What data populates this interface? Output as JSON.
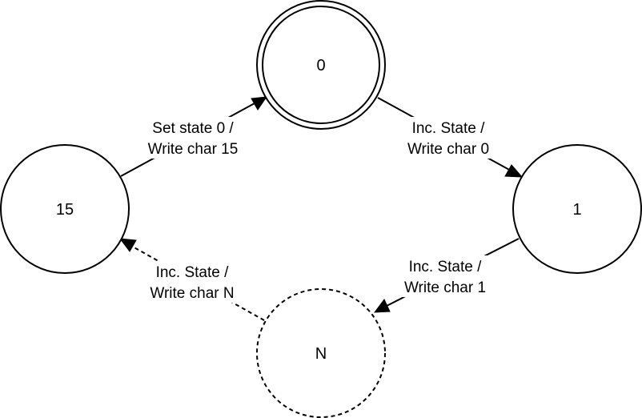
{
  "diagram": {
    "states": {
      "s0": {
        "label": "0",
        "accepting": true
      },
      "s1": {
        "label": "1"
      },
      "sN": {
        "label": "N",
        "dashed": true
      },
      "s15": {
        "label": "15"
      }
    },
    "transitions": {
      "t0_1": {
        "line1": "Inc. State /",
        "line2": "Write char 0"
      },
      "t1_N": {
        "line1": "Inc. State /",
        "line2": "Write char 1"
      },
      "tN_15": {
        "line1": "Inc. State /",
        "line2": "Write char N",
        "dashed": true
      },
      "t15_0": {
        "line1": "Set state 0 /",
        "line2": "Write char 15"
      }
    }
  }
}
